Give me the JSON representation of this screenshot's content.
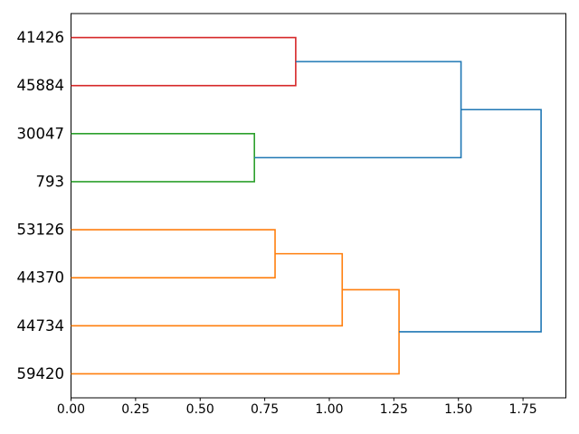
{
  "figure": {
    "background": "#ffffff",
    "title": ""
  },
  "chart_data": {
    "type": "dendrogram",
    "orientation": "right",
    "title": "",
    "xlabel": "",
    "ylabel": "",
    "grid": false,
    "legend": null,
    "leaf_labels": [
      "41426",
      "45884",
      "30047",
      "793",
      "53126",
      "44370",
      "44734",
      "59420"
    ],
    "merges": [
      {
        "id": "M0",
        "a": "L0",
        "b": "L1",
        "distance": 0.87,
        "color": "#d62728"
      },
      {
        "id": "M1",
        "a": "L2",
        "b": "L3",
        "distance": 0.71,
        "color": "#2ca02c"
      },
      {
        "id": "M2",
        "a": "L4",
        "b": "L5",
        "distance": 0.79,
        "color": "#ff7f0e"
      },
      {
        "id": "M3",
        "a": "M2",
        "b": "L6",
        "distance": 1.05,
        "color": "#ff7f0e"
      },
      {
        "id": "M4",
        "a": "M3",
        "b": "L7",
        "distance": 1.27,
        "color": "#ff7f0e"
      },
      {
        "id": "M5",
        "a": "M0",
        "b": "M1",
        "distance": 1.51,
        "color": "#1f77b4"
      },
      {
        "id": "M6",
        "a": "M5",
        "b": "M4",
        "distance": 1.82,
        "color": "#1f77b4"
      }
    ],
    "x_ticks": [
      {
        "value": 0.0,
        "label": "0.00"
      },
      {
        "value": 0.25,
        "label": "0.25"
      },
      {
        "value": 0.5,
        "label": "0.50"
      },
      {
        "value": 0.75,
        "label": "0.75"
      },
      {
        "value": 1.0,
        "label": "1.00"
      },
      {
        "value": 1.25,
        "label": "1.25"
      },
      {
        "value": 1.5,
        "label": "1.50"
      },
      {
        "value": 1.75,
        "label": "1.75"
      }
    ],
    "xlim": [
      0,
      1.916
    ],
    "colors": {
      "above_threshold": "#1f77b4",
      "cluster_red": "#d62728",
      "cluster_green": "#2ca02c",
      "cluster_orange": "#ff7f0e",
      "axis": "#000000"
    }
  }
}
